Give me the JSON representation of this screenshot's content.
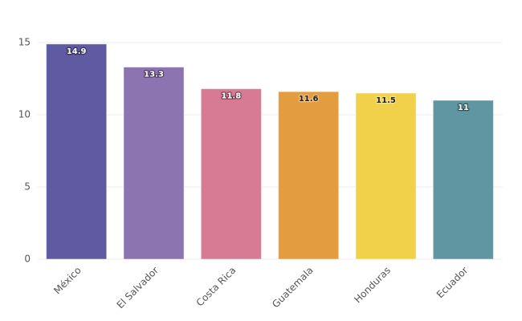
{
  "chart_data": {
    "type": "bar",
    "categories": [
      "México",
      "El Salvador",
      "Costa Rica",
      "Guatemala",
      "Honduras",
      "Ecuador"
    ],
    "values": [
      14.9,
      13.3,
      11.8,
      11.6,
      11.5,
      11
    ],
    "colors": [
      "#5f5aa2",
      "#8b74b0",
      "#d77a94",
      "#e39d3f",
      "#f1d04a",
      "#5f96a2"
    ],
    "ylim": [
      0,
      15
    ],
    "yticks": [
      0,
      5,
      10,
      15
    ],
    "grid": true
  }
}
